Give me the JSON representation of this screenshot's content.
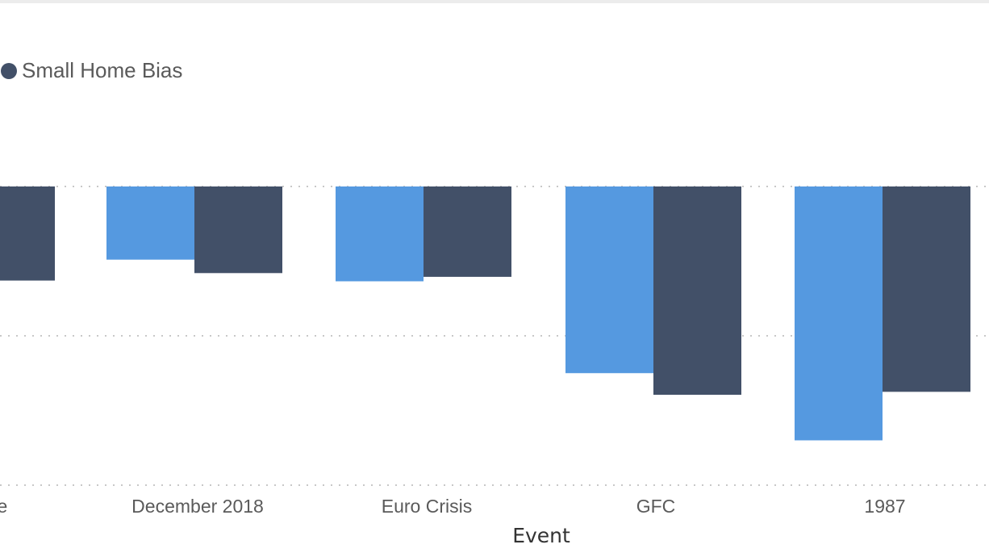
{
  "chart_data": {
    "type": "bar",
    "xlabel": "Event",
    "ylabel": "",
    "ylim": [
      -0.4,
      0
    ],
    "grid": true,
    "legend": "top-left",
    "legend_entries": [
      "Small Home Bias"
    ],
    "categories": [
      "ble",
      "December 2018",
      "Euro Crisis",
      "GFC",
      "1987"
    ],
    "series": [
      {
        "name": "",
        "color": "#5599e0",
        "values": [
          null,
          -0.098,
          -0.127,
          -0.25,
          -0.34
        ]
      },
      {
        "name": "Small Home Bias",
        "color": "#425068",
        "values": [
          -0.126,
          -0.116,
          -0.121,
          -0.279,
          -0.275
        ]
      }
    ]
  }
}
